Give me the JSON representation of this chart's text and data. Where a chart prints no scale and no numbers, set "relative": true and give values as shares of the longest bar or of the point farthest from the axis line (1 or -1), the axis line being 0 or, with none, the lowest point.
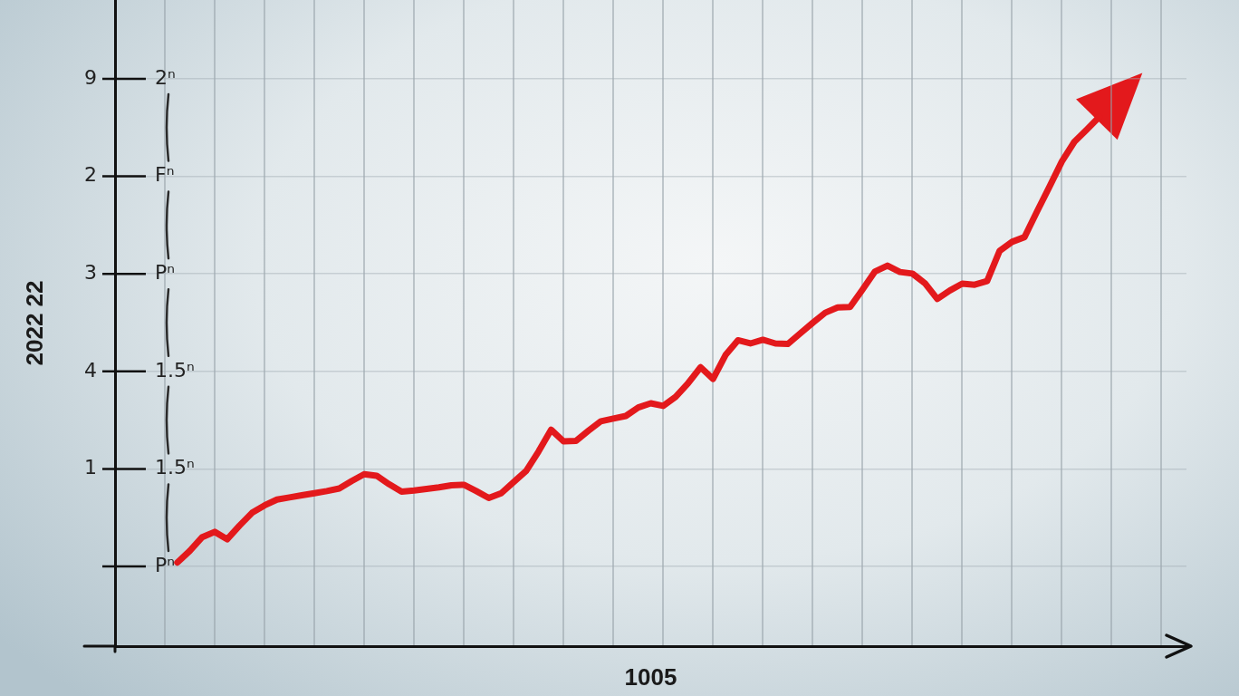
{
  "chart_data": {
    "type": "line",
    "xlabel": "1005",
    "ylabel": "2022 22",
    "relative": true,
    "annotations": [
      "2ⁿ",
      "Fⁿ",
      "Pⁿ",
      "1.5ⁿ",
      "1.5ⁿ",
      "Pⁿ",
      "9",
      "2",
      "3",
      "4",
      "1"
    ],
    "categories": [
      null,
      null,
      null,
      null,
      null,
      null,
      null,
      null,
      null,
      null,
      null,
      null,
      null,
      null,
      null,
      null,
      null,
      null,
      null,
      null,
      null,
      null,
      null,
      null,
      null,
      null,
      null,
      null,
      null,
      null,
      null,
      null,
      null,
      null,
      null,
      null,
      null,
      null,
      null,
      null,
      null,
      null,
      null,
      null,
      null,
      null,
      null,
      null,
      null,
      null,
      null,
      null,
      null,
      null,
      null,
      null,
      null,
      null,
      null,
      null,
      null,
      null,
      null,
      null,
      null,
      null,
      null,
      null,
      null,
      null,
      null,
      null,
      null,
      null,
      null,
      null,
      null,
      null,
      null,
      null,
      null,
      null,
      null,
      null,
      null,
      null,
      null
    ],
    "series": [
      {
        "color": "#e3191c",
        "values": [
          null,
          null,
          null,
          null,
          null,
          0.158,
          0.18,
          0.206,
          0.216,
          0.202,
          0.228,
          0.252,
          0.266,
          0.277,
          0.281,
          0.285,
          0.289,
          0.293,
          0.298,
          0.312,
          0.325,
          0.322,
          0.306,
          0.292,
          0.294,
          0.297,
          0.3,
          0.304,
          0.305,
          0.293,
          0.28,
          0.289,
          0.31,
          0.331,
          0.368,
          0.409,
          0.387,
          0.388,
          0.407,
          0.425,
          0.43,
          0.435,
          0.451,
          0.459,
          0.454,
          0.471,
          0.497,
          0.527,
          0.505,
          0.55,
          0.578,
          0.572,
          0.579,
          0.572,
          0.571,
          0.591,
          0.611,
          0.63,
          0.64,
          0.641,
          0.674,
          0.708,
          0.719,
          0.707,
          0.704,
          0.686,
          0.656,
          0.672,
          0.685,
          0.683,
          0.69,
          0.747,
          0.764,
          0.773,
          0.821,
          0.868,
          0.916,
          0.953,
          0.976,
          1,
          null,
          null,
          null,
          null,
          null,
          null,
          null
        ]
      }
    ],
    "grid": true,
    "tick_labels": "y",
    "marker": "none",
    "line_style": "solid"
  }
}
